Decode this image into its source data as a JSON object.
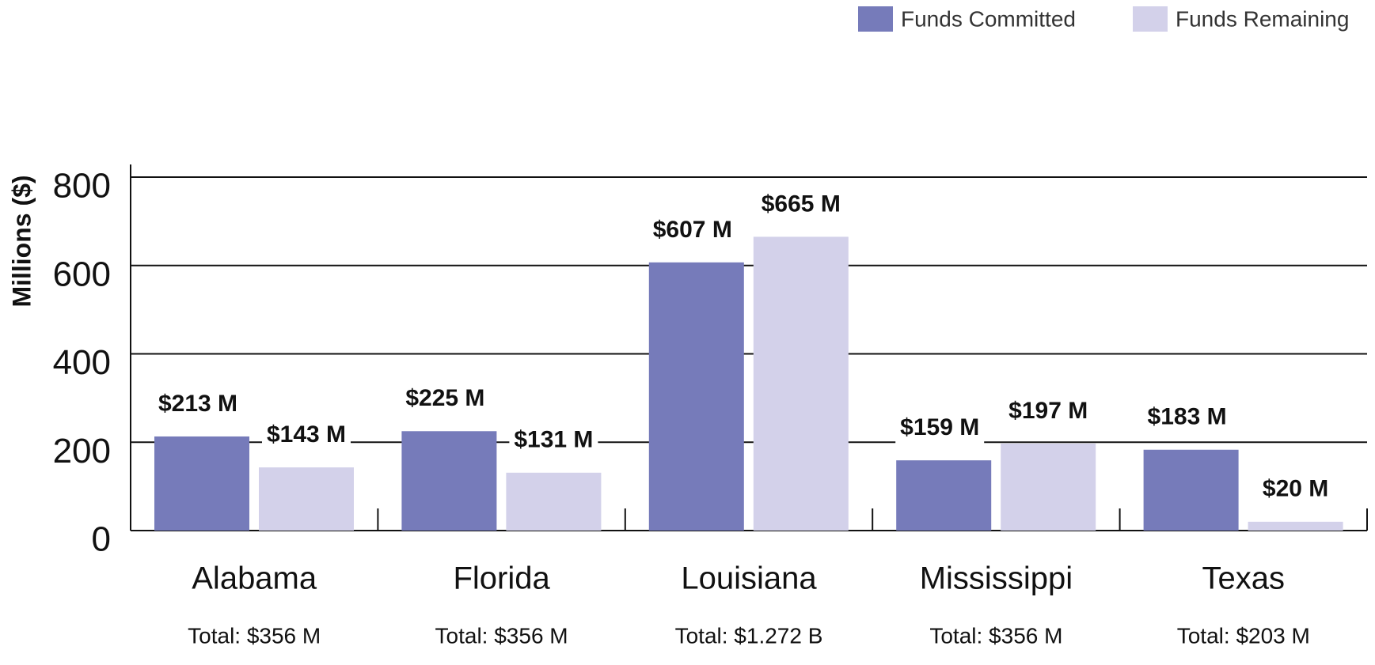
{
  "chart_data": {
    "type": "bar",
    "y_label": "Millions ($)",
    "categories": [
      "Alabama",
      "Florida",
      "Louisiana",
      "Mississippi",
      "Texas"
    ],
    "totals": [
      "Total: $356 M",
      "Total: $356 M",
      "Total: $1.272 B",
      "Total: $356 M",
      "Total: $203 M"
    ],
    "series": [
      {
        "name": "Funds Committed",
        "color": "#767bba",
        "values": [
          213,
          225,
          607,
          159,
          183
        ],
        "value_labels": [
          "$213 M",
          "$225 M",
          "$607 M",
          "$159 M",
          "$183 M"
        ]
      },
      {
        "name": "Funds Remaining",
        "color": "#d3d1ea",
        "values": [
          143,
          131,
          665,
          197,
          20
        ],
        "value_labels": [
          "$143 M",
          "$131 M",
          "$665 M",
          "$197 M",
          "$20 M"
        ]
      }
    ],
    "ylim": [
      0,
      800
    ],
    "yticks": [
      0,
      200,
      400,
      600,
      800
    ],
    "grid": true,
    "legend": "top-right"
  }
}
